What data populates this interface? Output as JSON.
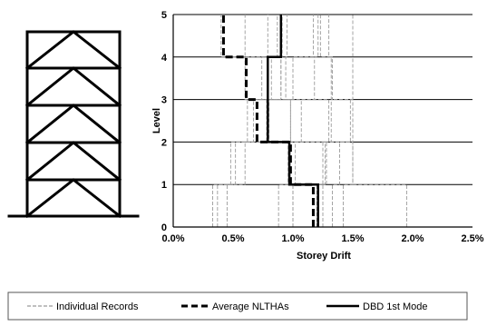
{
  "chart_data": {
    "type": "line",
    "title": "",
    "xlabel": "Storey Drift",
    "ylabel": "Level",
    "xlim": [
      0,
      0.025
    ],
    "ylim": [
      0,
      5
    ],
    "x_ticks": [
      "0.0%",
      "0.5%",
      "1.0%",
      "1.5%",
      "2.0%",
      "2.5%"
    ],
    "y_ticks": [
      "0",
      "1",
      "2",
      "3",
      "4",
      "5"
    ],
    "grid": "horizontal",
    "legend_position": "bottom",
    "colors": {
      "records": "#9a9a9a",
      "average": "#000000",
      "dbd": "#000000",
      "grid": "#000000",
      "frame": "#000000"
    },
    "series": [
      {
        "name": "Individual Records",
        "style": "thin-dashed",
        "lines": [
          [
            0.0033,
            0.0048,
            0.0062,
            0.0074,
            0.0079
          ],
          [
            0.0037,
            0.0052,
            0.0067,
            0.0082,
            0.0087
          ],
          [
            0.0045,
            0.006,
            0.0078,
            0.009,
            0.0091
          ],
          [
            0.0088,
            0.0096,
            0.0098,
            0.01,
            0.0117
          ],
          [
            0.01,
            0.0102,
            0.0107,
            0.0118,
            0.0121
          ],
          [
            0.012,
            0.0125,
            0.0132,
            0.0133,
            0.013
          ],
          [
            0.0133,
            0.0139,
            0.0148,
            0.015,
            0.015
          ],
          [
            0.0142,
            0.015,
            0.015,
            0.0132,
            0.0123
          ],
          [
            0.0195,
            0.015,
            0.013,
            0.0094,
            0.0095
          ],
          [
            0.0125,
            0.0127,
            0.008,
            0.009,
            0.006
          ],
          [
            0.01,
            0.0128,
            0.0098,
            0.006,
            0.004
          ]
        ]
      },
      {
        "name": "Average NLTHAs",
        "style": "thick-dashed",
        "values": [
          0.0117,
          0.0098,
          0.007,
          0.0061,
          0.0042
        ]
      },
      {
        "name": "DBD 1st Mode",
        "style": "thick-solid",
        "values": [
          0.0121,
          0.0097,
          0.0079,
          0.0079,
          0.009
        ]
      }
    ]
  },
  "legend": {
    "records_label": "Individual Records",
    "average_label": "Average NLTHAs",
    "dbd_label": "DBD 1st Mode"
  }
}
